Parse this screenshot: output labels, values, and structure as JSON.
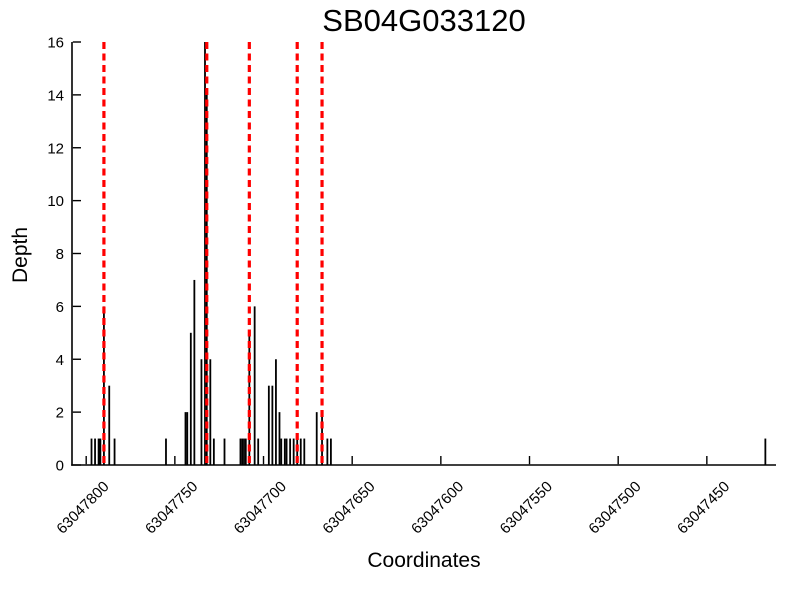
{
  "chart_data": {
    "type": "bar",
    "title": "SB04G033120",
    "xlabel": "Coordinates",
    "ylabel": "Depth",
    "x_reversed": true,
    "xlim": [
      63047808,
      63047411
    ],
    "ylim": [
      0,
      16
    ],
    "grid": false,
    "legend": "none",
    "bar_color": "#000000",
    "axis_color": "#000000",
    "vline_color": "#ff0000",
    "vline_style": "dashed",
    "bar_width": 1,
    "xticks": [
      63047800,
      63047750,
      63047700,
      63047650,
      63047600,
      63047550,
      63047500,
      63047450
    ],
    "xtick_labels": [
      "63047800",
      "63047750",
      "63047700",
      "63047650",
      "63047600",
      "63047550",
      "63047500",
      "63047450"
    ],
    "yticks": [
      0,
      2,
      4,
      6,
      8,
      10,
      12,
      14,
      16
    ],
    "ytick_labels": [
      "0",
      "2",
      "4",
      "6",
      "8",
      "10",
      "12",
      "14",
      "16"
    ],
    "vlines": [
      63047790,
      63047732,
      63047708,
      63047681,
      63047667
    ],
    "bars": [
      {
        "x": 63047797,
        "depth": 1
      },
      {
        "x": 63047795,
        "depth": 1
      },
      {
        "x": 63047793,
        "depth": 1
      },
      {
        "x": 63047792,
        "depth": 1
      },
      {
        "x": 63047790,
        "depth": 6
      },
      {
        "x": 63047787,
        "depth": 3
      },
      {
        "x": 63047784,
        "depth": 1
      },
      {
        "x": 63047755,
        "depth": 1
      },
      {
        "x": 63047744,
        "depth": 2
      },
      {
        "x": 63047743,
        "depth": 2
      },
      {
        "x": 63047741,
        "depth": 5
      },
      {
        "x": 63047739,
        "depth": 7
      },
      {
        "x": 63047735,
        "depth": 4
      },
      {
        "x": 63047733,
        "depth": 16
      },
      {
        "x": 63047732,
        "depth": 14
      },
      {
        "x": 63047730,
        "depth": 4
      },
      {
        "x": 63047728,
        "depth": 1
      },
      {
        "x": 63047722,
        "depth": 1
      },
      {
        "x": 63047713,
        "depth": 1
      },
      {
        "x": 63047712,
        "depth": 1
      },
      {
        "x": 63047711,
        "depth": 1
      },
      {
        "x": 63047710,
        "depth": 1
      },
      {
        "x": 63047708,
        "depth": 5
      },
      {
        "x": 63047705,
        "depth": 6
      },
      {
        "x": 63047703,
        "depth": 1
      },
      {
        "x": 63047697,
        "depth": 3
      },
      {
        "x": 63047695,
        "depth": 3
      },
      {
        "x": 63047693,
        "depth": 4
      },
      {
        "x": 63047691,
        "depth": 2
      },
      {
        "x": 63047690,
        "depth": 1
      },
      {
        "x": 63047688,
        "depth": 1
      },
      {
        "x": 63047687,
        "depth": 1
      },
      {
        "x": 63047685,
        "depth": 1
      },
      {
        "x": 63047683,
        "depth": 1
      },
      {
        "x": 63047681,
        "depth": 1
      },
      {
        "x": 63047679,
        "depth": 1
      },
      {
        "x": 63047677,
        "depth": 1
      },
      {
        "x": 63047670,
        "depth": 2
      },
      {
        "x": 63047667,
        "depth": 2
      },
      {
        "x": 63047664,
        "depth": 1
      },
      {
        "x": 63047662,
        "depth": 1
      },
      {
        "x": 63047417,
        "depth": 1
      }
    ]
  }
}
